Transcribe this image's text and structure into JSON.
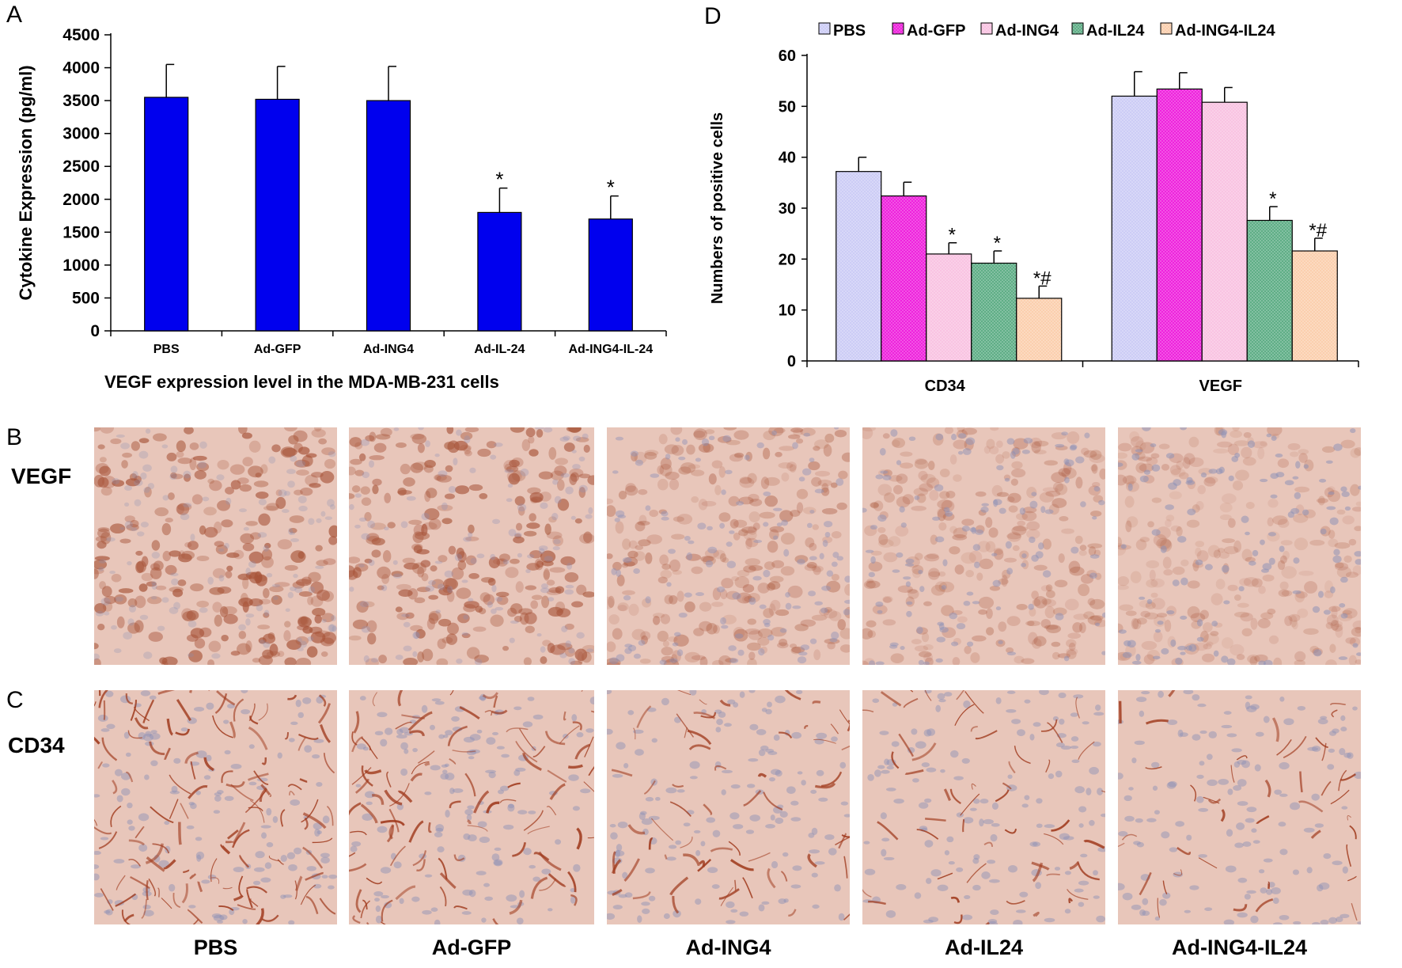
{
  "panels": {
    "a": "A",
    "b": "B",
    "c": "C",
    "d": "D"
  },
  "row_labels": {
    "vegf": "VEGF",
    "cd34": "CD34"
  },
  "col_labels": [
    "PBS",
    "Ad-GFP",
    "Ad-ING4",
    "Ad-IL24",
    "Ad-ING4-IL24"
  ],
  "stain_colors": {
    "background": "#e8c6ba",
    "vegf_cell": "#a8553a",
    "cd34_vessel": "#a03b1e",
    "nucleus": "#8a8fb6"
  },
  "chart_data": [
    {
      "type": "bar",
      "title": "",
      "xlabel": "VEGF expression level in the MDA-MB-231 cells",
      "ylabel": "Cytokine Expression (pg/ml)",
      "ylim": [
        0,
        4500
      ],
      "yticks": [
        "0",
        "500",
        "1000",
        "1500",
        "2000",
        "2500",
        "3000",
        "3500",
        "4000",
        "4500"
      ],
      "categories": [
        "PBS",
        "Ad-GFP",
        "Ad-ING4",
        "Ad-IL-24",
        "Ad-ING4-IL-24"
      ],
      "values": [
        3550,
        3520,
        3500,
        1800,
        1700
      ],
      "errors": [
        500,
        500,
        520,
        370,
        350
      ],
      "annotations": [
        "",
        "",
        "",
        "*",
        "*"
      ],
      "color": "#0000ee",
      "grid": false
    },
    {
      "type": "bar",
      "title": "",
      "xlabel": "",
      "ylabel": "Numbers of positive cells",
      "ylim": [
        0,
        60
      ],
      "yticks": [
        "0",
        "10",
        "20",
        "30",
        "40",
        "50",
        "60"
      ],
      "categories": [
        "CD34",
        "VEGF"
      ],
      "legend_position": "top",
      "grid": false,
      "series": [
        {
          "name": "PBS",
          "color": "#ccccf5",
          "values": [
            37.2,
            52.0
          ],
          "errors": [
            2.8,
            4.8
          ],
          "annotations": [
            "",
            ""
          ]
        },
        {
          "name": "Ad-GFP",
          "color": "#ee22dd",
          "values": [
            32.4,
            53.4
          ],
          "errors": [
            2.7,
            3.2
          ],
          "annotations": [
            "",
            ""
          ]
        },
        {
          "name": "Ad-ING4",
          "color": "#f9c3e2",
          "values": [
            21.0,
            50.8
          ],
          "errors": [
            2.2,
            2.9
          ],
          "annotations": [
            "*",
            ""
          ]
        },
        {
          "name": "Ad-IL24",
          "color": "#5fae86",
          "values": [
            19.2,
            27.6
          ],
          "errors": [
            2.4,
            2.7
          ],
          "annotations": [
            "*",
            "*"
          ]
        },
        {
          "name": "Ad-ING4-IL24",
          "color": "#fbcfae",
          "values": [
            12.3,
            21.6
          ],
          "errors": [
            2.4,
            2.5
          ],
          "annotations": [
            "*#",
            "*#"
          ]
        }
      ]
    }
  ]
}
